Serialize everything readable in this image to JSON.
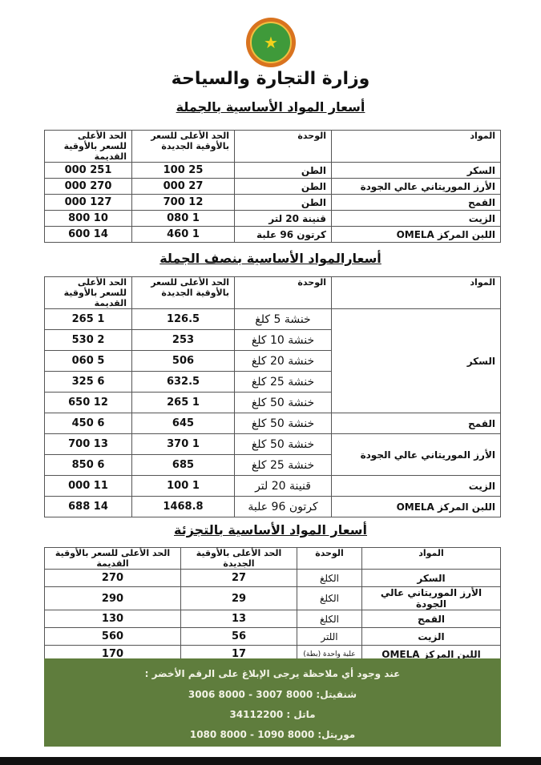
{
  "ministry": "وزارة التجارة والسياحة",
  "colors": {
    "note_bg": "#5f7d3d",
    "logo_outer": "#d9731f",
    "logo_inner": "#3f9a3a"
  },
  "headers": {
    "material": "المواد",
    "unit": "الوحدة",
    "new": "الحد الأعلى للسعر بالأوقية الجديدة",
    "old": "الحد الأعلى للسعر بالأوقية القديمة",
    "new_short": "الحد الأعلى بالأوقية الجديدة",
    "old_short": "الحد الأعلى للسعر بالأوقية القديمة"
  },
  "wholesale": {
    "title": "أسعار المواد الأساسية بالجملة",
    "rows": [
      {
        "material": "السكر",
        "unit": "الطن",
        "new": "25 100",
        "old": "251 000"
      },
      {
        "material": "الأرز الموريتاني عالي الجودة",
        "unit": "الطن",
        "new": "27 000",
        "old": "270 000"
      },
      {
        "material": "القمح",
        "unit": "الطن",
        "new": "12 700",
        "old": "127 000"
      },
      {
        "material": "الزيت",
        "unit": "قنينة 20 لتر",
        "new": "1 080",
        "old": "10 800"
      },
      {
        "material": "اللبن المركز OMELA",
        "unit": "كرتون 96 علبة",
        "new": "1 460",
        "old": "14 600"
      }
    ]
  },
  "semi": {
    "title": "أسعارالمواد الأساسية بنصف الجملة",
    "materials": [
      "السكر",
      "القمح",
      "الأرز الموريتاني عالي الجودة",
      "الزيت",
      "اللبن المركز OMELA"
    ],
    "rows": [
      {
        "unit": "خنشة 5 كلغ",
        "new": "126.5",
        "old": "1 265"
      },
      {
        "unit": "خنشة 10 كلغ",
        "new": "253",
        "old": "2 530"
      },
      {
        "unit": "خنشة 20 كلغ",
        "new": "506",
        "old": "5 060"
      },
      {
        "unit": "خنشة 25 كلغ",
        "new": "632.5",
        "old": "6 325"
      },
      {
        "unit": "خنشة 50 كلغ",
        "new": "1 265",
        "old": "12 650"
      },
      {
        "unit": "خنشة 50 كلغ",
        "new": "645",
        "old": "6 450"
      },
      {
        "unit": "خنشة 50 كلغ",
        "new": "1 370",
        "old": "13 700"
      },
      {
        "unit": "خنشة 25 كلغ",
        "new": "685",
        "old": "6 850"
      },
      {
        "unit": "قنينة 20 لتر",
        "new": "1 100",
        "old": "11 000"
      },
      {
        "unit": "كرتون 96 علبة",
        "new": "1468.8",
        "old": "14 688"
      }
    ]
  },
  "retail": {
    "title": "أسعار المواد الأساسية بالتجزئة",
    "rows": [
      {
        "material": "السكر",
        "unit": "الكلغ",
        "new": "27",
        "old": "270"
      },
      {
        "material": "الأرز الموريتاني عالي الجودة",
        "unit": "الكلغ",
        "new": "29",
        "old": "290"
      },
      {
        "material": "القمح",
        "unit": "الكلغ",
        "new": "13",
        "old": "130"
      },
      {
        "material": "الزيت",
        "unit": "اللتر",
        "new": "56",
        "old": "560"
      },
      {
        "material": "اللبن المركز OMELA",
        "unit": "علبة واحدة (بطة)",
        "new": "17",
        "old": "170"
      }
    ]
  },
  "note": {
    "intro": "عند وجود أي ملاحظة يرجى الإبلاغ على الرقم الأخضر :",
    "lines": [
      "شنقيتل:  8000 3007  -  8000 3006",
      "ماتل  :        34112200",
      "موريتل:  8000 1090  -  8000 1080"
    ]
  }
}
